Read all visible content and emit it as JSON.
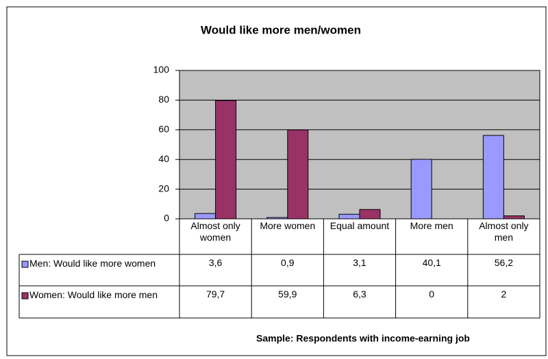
{
  "chart_data": {
    "type": "bar",
    "title": "Would like more men/women",
    "categories": [
      "Almost only women",
      "More women",
      "Equal amount",
      "More men",
      "Almost only men"
    ],
    "series": [
      {
        "name": "Men: Would like more women",
        "color": "#9999ff",
        "values": [
          3.6,
          0.9,
          3.1,
          40.1,
          56.2
        ],
        "value_labels": [
          "3,6",
          "0,9",
          "3,1",
          "40,1",
          "56,2"
        ]
      },
      {
        "name": "Women: Would like more men",
        "color": "#993366",
        "values": [
          79.7,
          59.9,
          6.3,
          0,
          2
        ],
        "value_labels": [
          "79,7",
          "59,9",
          "6,3",
          "0",
          "2"
        ]
      }
    ],
    "ylim": [
      0,
      100
    ],
    "yticks": [
      0,
      20,
      40,
      60,
      80,
      100
    ],
    "grid": true,
    "plot_background": "#c0c0c0",
    "note": "Sample: Respondents with income-earning job"
  }
}
